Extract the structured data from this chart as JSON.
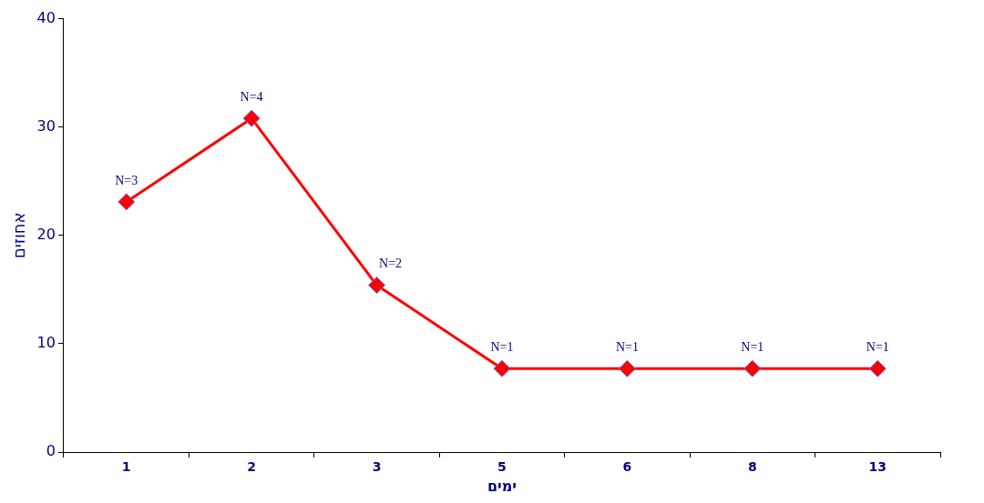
{
  "chart_data": {
    "type": "line",
    "xlabel": "ימים",
    "ylabel": "אחוזים",
    "categories": [
      "1",
      "2",
      "3",
      "5",
      "6",
      "8",
      "13"
    ],
    "series": [
      {
        "color": "#ff0000",
        "values": [
          23.1,
          30.8,
          15.4,
          7.7,
          7.7,
          7.7,
          7.7
        ]
      }
    ],
    "ylim": [
      0,
      40
    ],
    "yticks": [
      0,
      10,
      20,
      30,
      40
    ],
    "grid": false,
    "legend": false,
    "marker": "diamond",
    "line_style": "solid",
    "annotations": [
      {
        "text": "N=3",
        "x": "1",
        "y": 23.1
      },
      {
        "text": "N=4",
        "x": "2",
        "y": 30.8
      },
      {
        "text": "N=2",
        "x": "3",
        "y": 15.4
      },
      {
        "text": "N=1",
        "x": "5",
        "y": 7.7
      },
      {
        "text": "N=1",
        "x": "6",
        "y": 7.7
      },
      {
        "text": "N=1",
        "x": "8",
        "y": 7.7
      },
      {
        "text": "N=1",
        "x": "13",
        "y": 7.7
      }
    ]
  }
}
